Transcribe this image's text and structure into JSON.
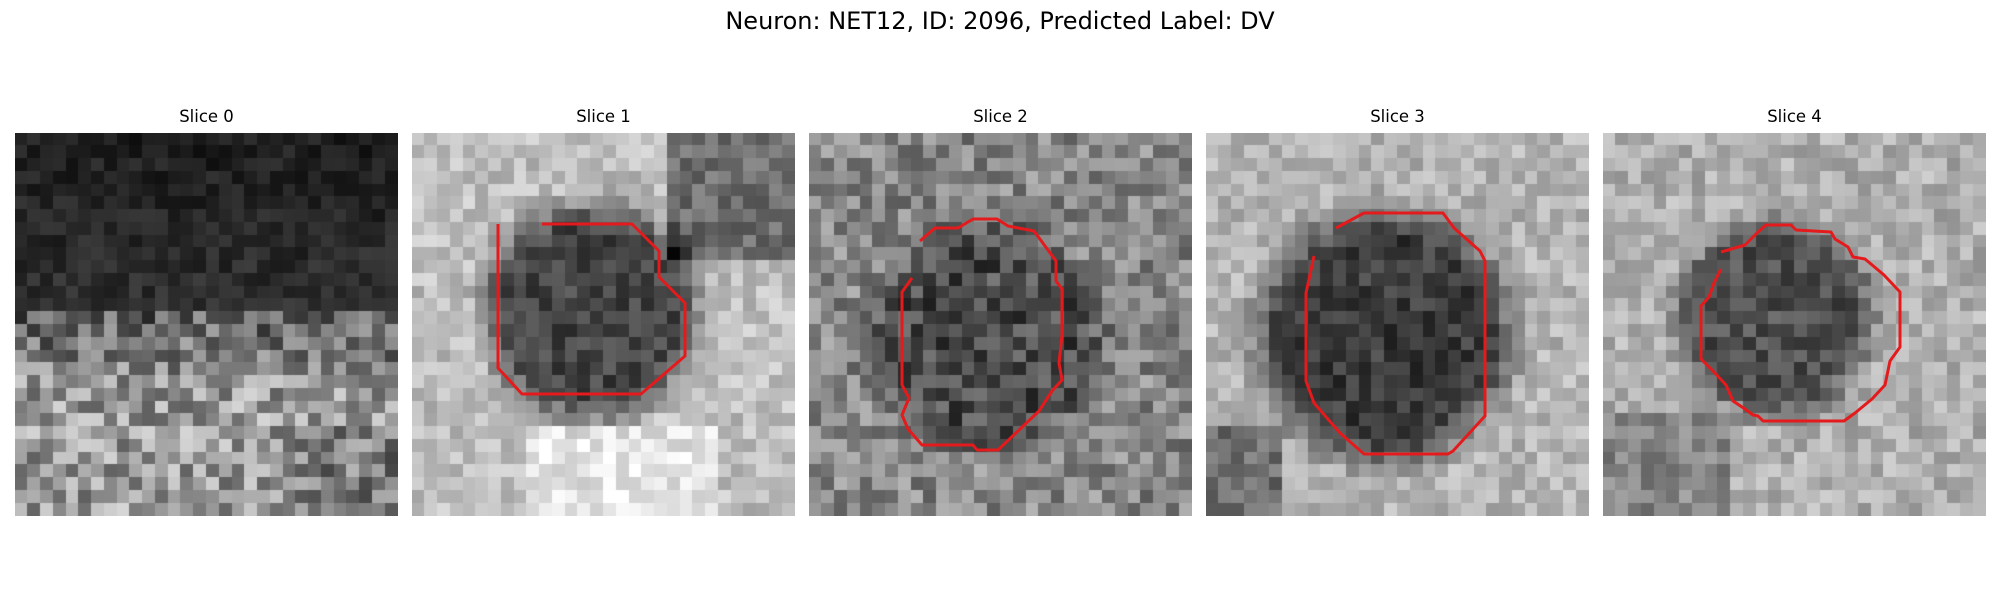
{
  "figure": {
    "title": "Neuron: NET12, ID: 2096, Predicted Label: DV"
  },
  "colors": {
    "outline": "#e41a1c",
    "colormap": "grayscale"
  },
  "slices": [
    {
      "label": "Slice 0",
      "has_outline": false,
      "image_kind": "grayscale-microscopy-tile",
      "pattern": "dark-top-bright-bottom"
    },
    {
      "label": "Slice 1",
      "has_outline": true,
      "image_kind": "grayscale-microscopy-tile",
      "pattern": "dark-cell-bright-surround"
    },
    {
      "label": "Slice 2",
      "has_outline": true,
      "image_kind": "grayscale-microscopy-tile",
      "pattern": "dark-cell-mid-surround"
    },
    {
      "label": "Slice 3",
      "has_outline": true,
      "image_kind": "grayscale-microscopy-tile",
      "pattern": "dark-cell-bright-surround"
    },
    {
      "label": "Slice 4",
      "has_outline": true,
      "image_kind": "grayscale-microscopy-tile",
      "pattern": "dark-cell-bright-surround"
    }
  ]
}
